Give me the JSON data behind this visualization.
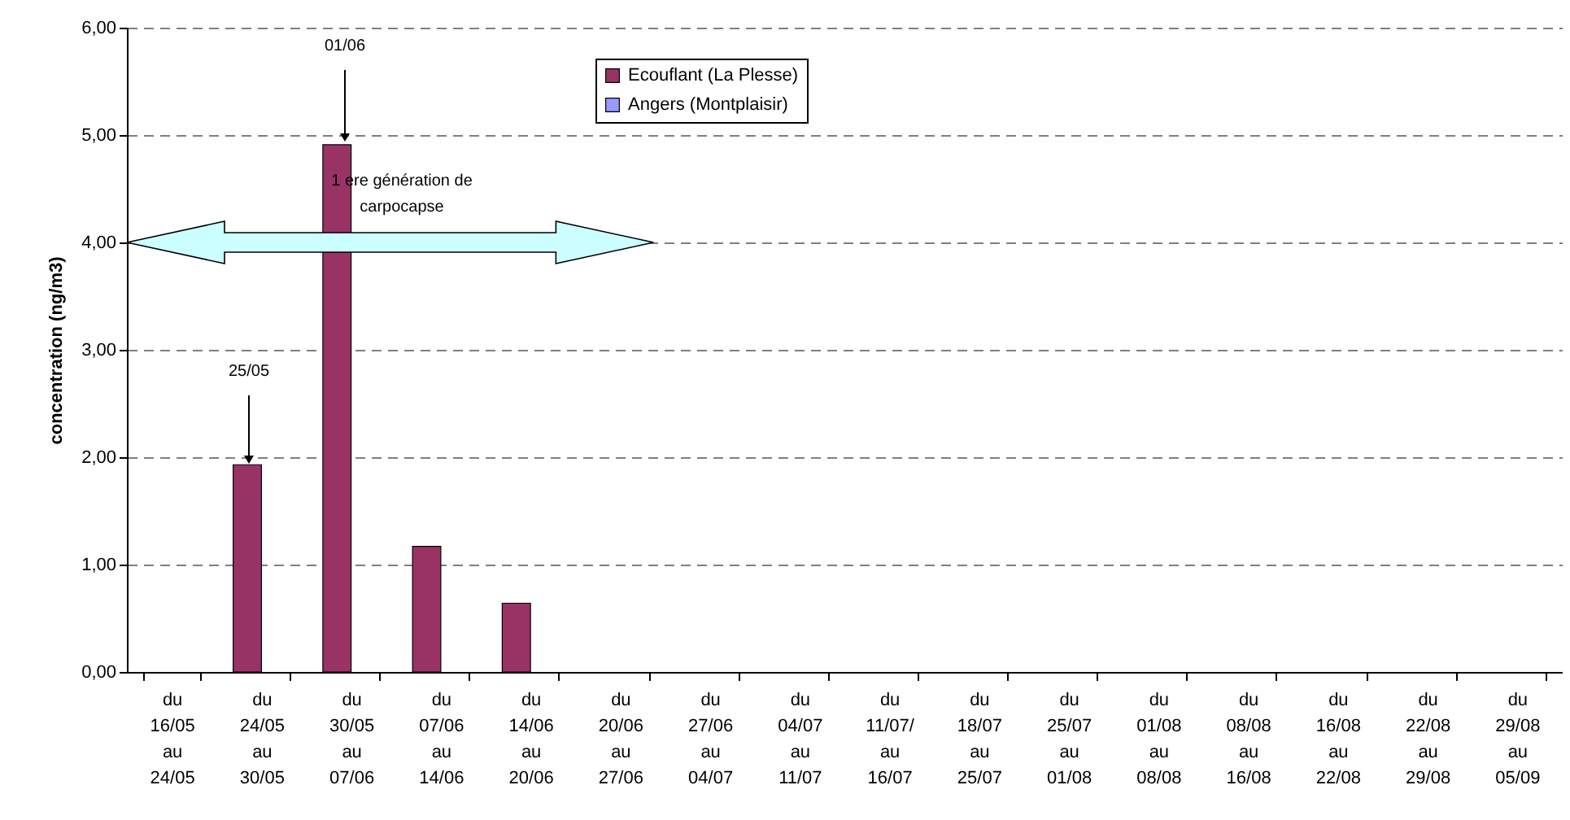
{
  "chart_data": {
    "type": "bar",
    "ylabel": "concentration (ng/m3)",
    "categories": [
      "du\n16/05\nau\n24/05",
      "du\n24/05\nau\n30/05",
      "du\n30/05\nau\n07/06",
      "du\n07/06\nau\n14/06",
      "du\n14/06\nau\n20/06",
      "du\n20/06\nau\n27/06",
      "du\n27/06\nau\n04/07",
      "du\n04/07\nau\n11/07",
      "du\n11/07/\nau\n16/07",
      "du\n18/07\nau\n25/07",
      "du\n25/07\nau\n01/08",
      "du\n01/08\nau\n08/08",
      "du\n08/08\nau\n16/08",
      "du\n16/08\nau\n22/08",
      "du\n22/08\nau\n29/08",
      "du\n29/08\nau\n05/09"
    ],
    "series": [
      {
        "name": "Ecouflant (La Plesse)",
        "color": "#993366",
        "values": [
          null,
          1.93,
          4.91,
          1.17,
          0.64,
          null,
          null,
          null,
          null,
          null,
          null,
          null,
          null,
          null,
          null,
          null
        ]
      },
      {
        "name": "Angers (Montplaisir)",
        "color": "#9999ff",
        "values": [
          null,
          null,
          null,
          null,
          null,
          null,
          null,
          null,
          null,
          null,
          null,
          null,
          null,
          null,
          null,
          null
        ]
      }
    ],
    "ylim": [
      0,
      6
    ],
    "yticks": [
      {
        "value": 0,
        "label": "0,00"
      },
      {
        "value": 1,
        "label": "1,00"
      },
      {
        "value": 2,
        "label": "2,00"
      },
      {
        "value": 3,
        "label": "3,00"
      },
      {
        "value": 4,
        "label": "4,00"
      },
      {
        "value": 5,
        "label": "5,00"
      },
      {
        "value": 6,
        "label": "6,00"
      }
    ],
    "grid": "y",
    "legend": "top",
    "annotations": [
      "01/06",
      "25/05",
      "1 ere génération de carpocapse"
    ]
  }
}
